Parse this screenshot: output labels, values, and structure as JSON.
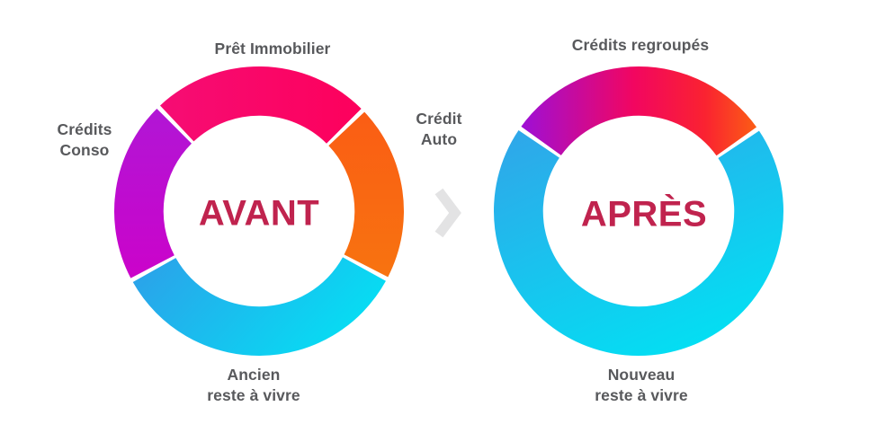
{
  "ui": {
    "background": "#ffffff",
    "label_color": "#58595c",
    "arrow_color": "#e3e3e4"
  },
  "chart_data": [
    {
      "type": "donut",
      "title": "AVANT",
      "title_color": "#c0234e",
      "inner_radius_ratio": 0.66,
      "legend": "none",
      "segments": [
        {
          "key": "pret-immobilier",
          "label": "Prêt Immobilier",
          "value_pct_est": 25,
          "start_deg": 316.9,
          "end_deg": 44.9,
          "gradient": {
            "x1": 0,
            "y1": 0,
            "x2": 1,
            "y2": 0,
            "stops": [
              {
                "offset": "0%",
                "color": "#f60d74"
              },
              {
                "offset": "100%",
                "color": "#fd005c"
              }
            ]
          }
        },
        {
          "key": "credit-auto",
          "label": "Crédit\nAuto",
          "value_pct_est": 20,
          "start_deg": 46.7,
          "end_deg": 117.1,
          "gradient": {
            "x1": 0,
            "y1": 0,
            "x2": 0,
            "y2": 1,
            "stops": [
              {
                "offset": "0%",
                "color": "#fa5d14"
              },
              {
                "offset": "100%",
                "color": "#f87310"
              }
            ]
          }
        },
        {
          "key": "ancien-reste-a-vivre",
          "label": "Ancien\nreste à vivre",
          "value_pct_est": 34,
          "start_deg": 118.9,
          "end_deg": 240.6,
          "gradient": {
            "x1": 0,
            "y1": 0,
            "x2": 1,
            "y2": 0.35,
            "stops": [
              {
                "offset": "0%",
                "color": "#2d9fe9"
              },
              {
                "offset": "100%",
                "color": "#07dcf3"
              }
            ]
          }
        },
        {
          "key": "credits-conso",
          "label": "Crédits\nConso",
          "value_pct_est": 21,
          "start_deg": 242.4,
          "end_deg": 315.1,
          "gradient": {
            "x1": 0,
            "y1": 0,
            "x2": 0,
            "y2": 1,
            "stops": [
              {
                "offset": "0%",
                "color": "#b116d5"
              },
              {
                "offset": "100%",
                "color": "#cb03ca"
              }
            ]
          }
        }
      ]
    },
    {
      "type": "donut",
      "title": "APRÈS",
      "title_color": "#c0234e",
      "inner_radius_ratio": 0.66,
      "legend": "none",
      "segments": [
        {
          "key": "credits-regroupes",
          "label": "Crédits regroupés",
          "value_pct_est": 31,
          "start_deg": 305.8,
          "end_deg": 54.5,
          "gradient": {
            "x1": 0,
            "y1": 0,
            "x2": 1,
            "y2": 0,
            "stops": [
              {
                "offset": "0%",
                "color": "#9e0fd6"
              },
              {
                "offset": "48%",
                "color": "#f20660"
              },
              {
                "offset": "78%",
                "color": "#fa2231"
              },
              {
                "offset": "100%",
                "color": "#fb5d15"
              }
            ]
          }
        },
        {
          "key": "nouveau-reste-a-vivre",
          "label": "Nouveau\nreste à vivre",
          "value_pct_est": 69,
          "start_deg": 56.3,
          "end_deg": 304.0,
          "gradient": {
            "x1": 0.1,
            "y1": 0,
            "x2": 0.65,
            "y2": 1,
            "stops": [
              {
                "offset": "0%",
                "color": "#2fa7e9"
              },
              {
                "offset": "100%",
                "color": "#03dff3"
              }
            ]
          }
        }
      ]
    }
  ]
}
